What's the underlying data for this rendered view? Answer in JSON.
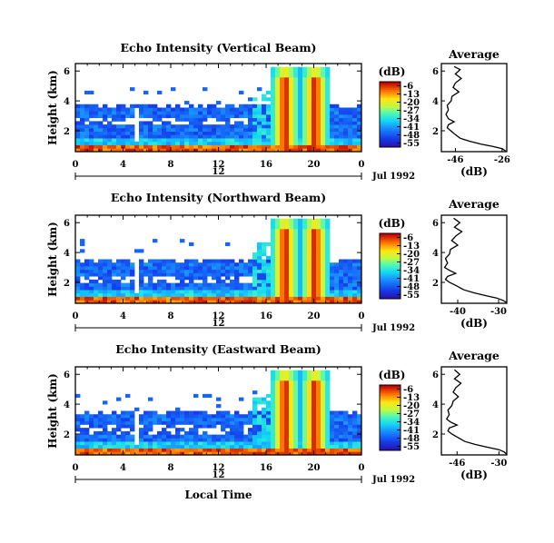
{
  "figure": {
    "x_axis_label": "Local Time",
    "date_label": "Jul 1992",
    "midnight_marker": "12",
    "average_title": "Average",
    "average_xlabel": "(dB)",
    "colorbar_unit": "(dB)"
  },
  "chart_data": [
    {
      "type": "heatmap",
      "title": "Echo Intensity (Vertical Beam)",
      "ylabel": "Height (km)",
      "xlabel": "Local Time",
      "x_ticks": [
        "0",
        "4",
        "8",
        "12",
        "16",
        "20",
        "0"
      ],
      "xlim": [
        0,
        24
      ],
      "y_ticks": [
        "2",
        "4",
        "6"
      ],
      "ylim": [
        0.6,
        6.5
      ],
      "colorbar": {
        "label": "(dB)",
        "ticks": [
          "-6",
          "-13",
          "-20",
          "-27",
          "-34",
          "-41",
          "-48",
          "-55"
        ]
      },
      "features": {
        "clutter_top_km": 3.8,
        "surface_echo_km": [
          0.6,
          1.1
        ],
        "storm_bursts_local_hour": [
          17.6,
          20.1
        ],
        "white_gap_band_km": [
          2.4,
          2.9
        ],
        "vertical_gap_hour": 5.2
      }
    },
    {
      "type": "heatmap",
      "title": "Echo Intensity (Northward Beam)",
      "ylabel": "Height (km)",
      "xlabel": "Local Time",
      "x_ticks": [
        "0",
        "4",
        "8",
        "12",
        "16",
        "20",
        "0"
      ],
      "xlim": [
        0,
        24
      ],
      "y_ticks": [
        "2",
        "4",
        "6"
      ],
      "ylim": [
        0.6,
        6.5
      ],
      "colorbar": {
        "label": "(dB)",
        "ticks": [
          "-6",
          "-13",
          "-20",
          "-27",
          "-34",
          "-41",
          "-48",
          "-55"
        ]
      },
      "features": {
        "clutter_top_km": 3.6,
        "surface_echo_km": [
          0.6,
          1.1
        ],
        "storm_bursts_local_hour": [
          17.6,
          20.1
        ],
        "white_gap_band_km": [
          1.9,
          2.5
        ],
        "vertical_gap_hour": 5.2
      }
    },
    {
      "type": "heatmap",
      "title": "Echo Intensity (Eastward Beam)",
      "ylabel": "Height (km)",
      "xlabel": "Local Time",
      "x_ticks": [
        "0",
        "4",
        "8",
        "12",
        "16",
        "20",
        "0"
      ],
      "xlim": [
        0,
        24
      ],
      "y_ticks": [
        "2",
        "4",
        "6"
      ],
      "ylim": [
        0.6,
        6.5
      ],
      "colorbar": {
        "label": "(dB)",
        "ticks": [
          "-6",
          "-13",
          "-20",
          "-27",
          "-34",
          "-41",
          "-48",
          "-55"
        ]
      },
      "features": {
        "clutter_top_km": 3.6,
        "surface_echo_km": [
          0.6,
          1.1
        ],
        "storm_bursts_local_hour": [
          17.6,
          20.1
        ],
        "white_gap_band_km": [
          1.9,
          2.6
        ],
        "vertical_gap_hour": 5.2
      }
    },
    {
      "type": "line",
      "title": "Average",
      "xlabel": "(dB)",
      "x_ticks": [
        "-46",
        "-26"
      ],
      "xlim": [
        -52,
        -24
      ],
      "y_ticks": [
        "2",
        "4",
        "6"
      ],
      "ylim": [
        0.6,
        6.5
      ],
      "profile": [
        [
          -46.5,
          6.3
        ],
        [
          -44.0,
          6.1
        ],
        [
          -46.0,
          5.8
        ],
        [
          -43.5,
          5.5
        ],
        [
          -46.0,
          5.2
        ],
        [
          -47.0,
          4.9
        ],
        [
          -44.5,
          4.6
        ],
        [
          -47.5,
          4.3
        ],
        [
          -47.8,
          4.0
        ],
        [
          -49.5,
          3.7
        ],
        [
          -49.0,
          3.4
        ],
        [
          -50.0,
          3.1
        ],
        [
          -49.0,
          2.8
        ],
        [
          -46.5,
          2.6
        ],
        [
          -49.0,
          2.4
        ],
        [
          -49.5,
          2.2
        ],
        [
          -48.0,
          2.0
        ],
        [
          -46.5,
          1.8
        ],
        [
          -44.0,
          1.5
        ],
        [
          -40.0,
          1.3
        ],
        [
          -35.0,
          1.1
        ],
        [
          -30.0,
          0.95
        ],
        [
          -26.0,
          0.8
        ],
        [
          -24.5,
          0.65
        ]
      ]
    },
    {
      "type": "line",
      "title": "Average",
      "xlabel": "(dB)",
      "x_ticks": [
        "-40",
        "-30"
      ],
      "xlim": [
        -44,
        -28
      ],
      "y_ticks": [
        "2",
        "4",
        "6"
      ],
      "ylim": [
        0.6,
        6.5
      ],
      "profile": [
        [
          -41.0,
          6.3
        ],
        [
          -39.5,
          6.0
        ],
        [
          -40.8,
          5.7
        ],
        [
          -39.0,
          5.4
        ],
        [
          -40.5,
          5.1
        ],
        [
          -41.5,
          4.8
        ],
        [
          -40.0,
          4.5
        ],
        [
          -41.8,
          4.2
        ],
        [
          -42.0,
          3.9
        ],
        [
          -43.0,
          3.6
        ],
        [
          -42.5,
          3.3
        ],
        [
          -43.2,
          3.0
        ],
        [
          -42.0,
          2.8
        ],
        [
          -40.5,
          2.6
        ],
        [
          -42.5,
          2.4
        ],
        [
          -43.0,
          2.2
        ],
        [
          -42.0,
          2.0
        ],
        [
          -40.5,
          1.8
        ],
        [
          -38.5,
          1.5
        ],
        [
          -36.0,
          1.3
        ],
        [
          -33.0,
          1.1
        ],
        [
          -30.5,
          0.95
        ],
        [
          -29.0,
          0.8
        ],
        [
          -28.0,
          0.65
        ]
      ]
    },
    {
      "type": "line",
      "title": "Average",
      "xlabel": "(dB)",
      "x_ticks": [
        "-46",
        "-30"
      ],
      "xlim": [
        -52,
        -27
      ],
      "y_ticks": [
        "2",
        "4",
        "6"
      ],
      "ylim": [
        0.6,
        6.5
      ],
      "profile": [
        [
          -47.0,
          6.3
        ],
        [
          -45.0,
          6.0
        ],
        [
          -47.0,
          5.7
        ],
        [
          -44.5,
          5.4
        ],
        [
          -46.5,
          5.1
        ],
        [
          -47.5,
          4.8
        ],
        [
          -45.5,
          4.5
        ],
        [
          -47.5,
          4.2
        ],
        [
          -48.0,
          3.9
        ],
        [
          -49.5,
          3.6
        ],
        [
          -49.0,
          3.3
        ],
        [
          -50.0,
          3.0
        ],
        [
          -48.5,
          2.8
        ],
        [
          -46.0,
          2.6
        ],
        [
          -49.0,
          2.4
        ],
        [
          -49.5,
          2.2
        ],
        [
          -48.0,
          2.0
        ],
        [
          -46.0,
          1.8
        ],
        [
          -43.0,
          1.5
        ],
        [
          -39.0,
          1.3
        ],
        [
          -34.0,
          1.1
        ],
        [
          -30.0,
          0.95
        ],
        [
          -28.0,
          0.8
        ],
        [
          -27.0,
          0.65
        ]
      ]
    }
  ]
}
